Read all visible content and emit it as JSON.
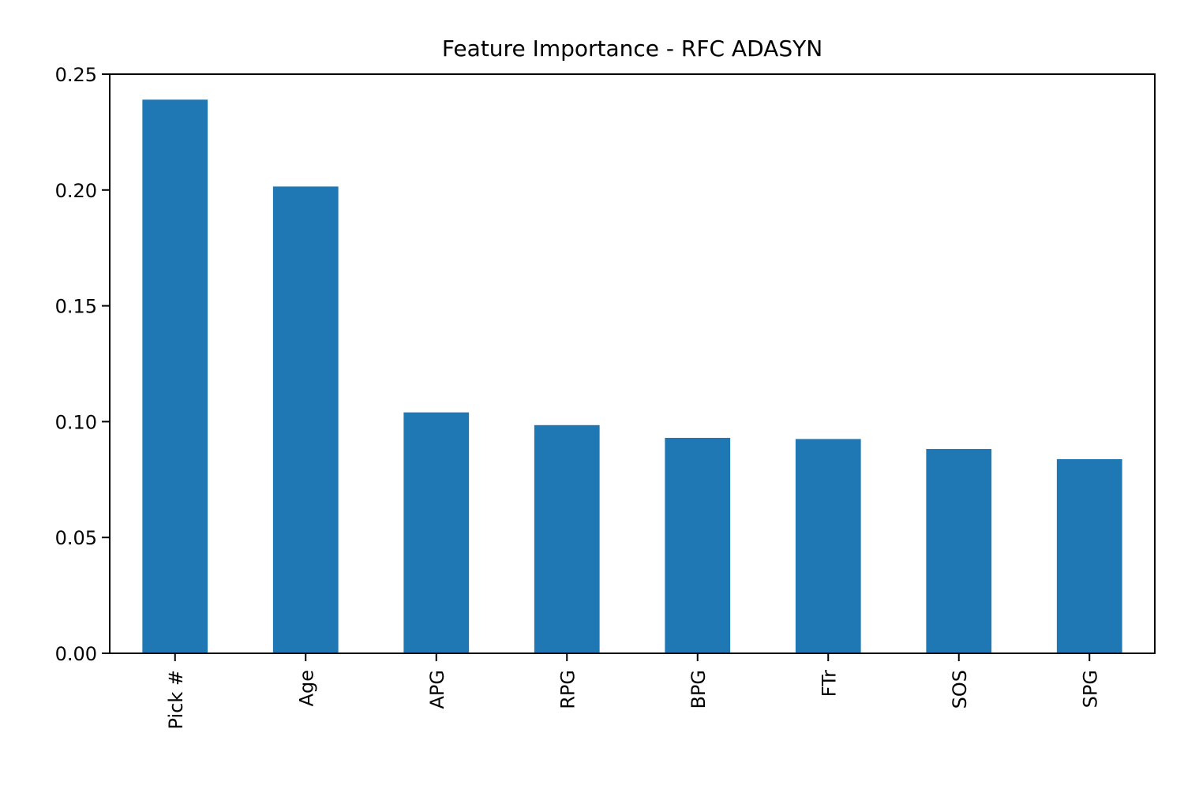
{
  "chart_data": {
    "type": "bar",
    "title": "Feature Importance - RFC ADASYN",
    "xlabel": "",
    "ylabel": "",
    "categories": [
      "Pick #",
      "Age",
      "APG",
      "RPG",
      "BPG",
      "FTr",
      "SOS",
      "SPG"
    ],
    "values": [
      0.239,
      0.2015,
      0.104,
      0.0985,
      0.093,
      0.0925,
      0.0882,
      0.0838
    ],
    "ylim": [
      0,
      0.25
    ],
    "yticks": [
      "0.00",
      "0.05",
      "0.10",
      "0.15",
      "0.20",
      "0.25"
    ],
    "bar_color": "#1f77b4",
    "grid": false,
    "legend": "none"
  }
}
